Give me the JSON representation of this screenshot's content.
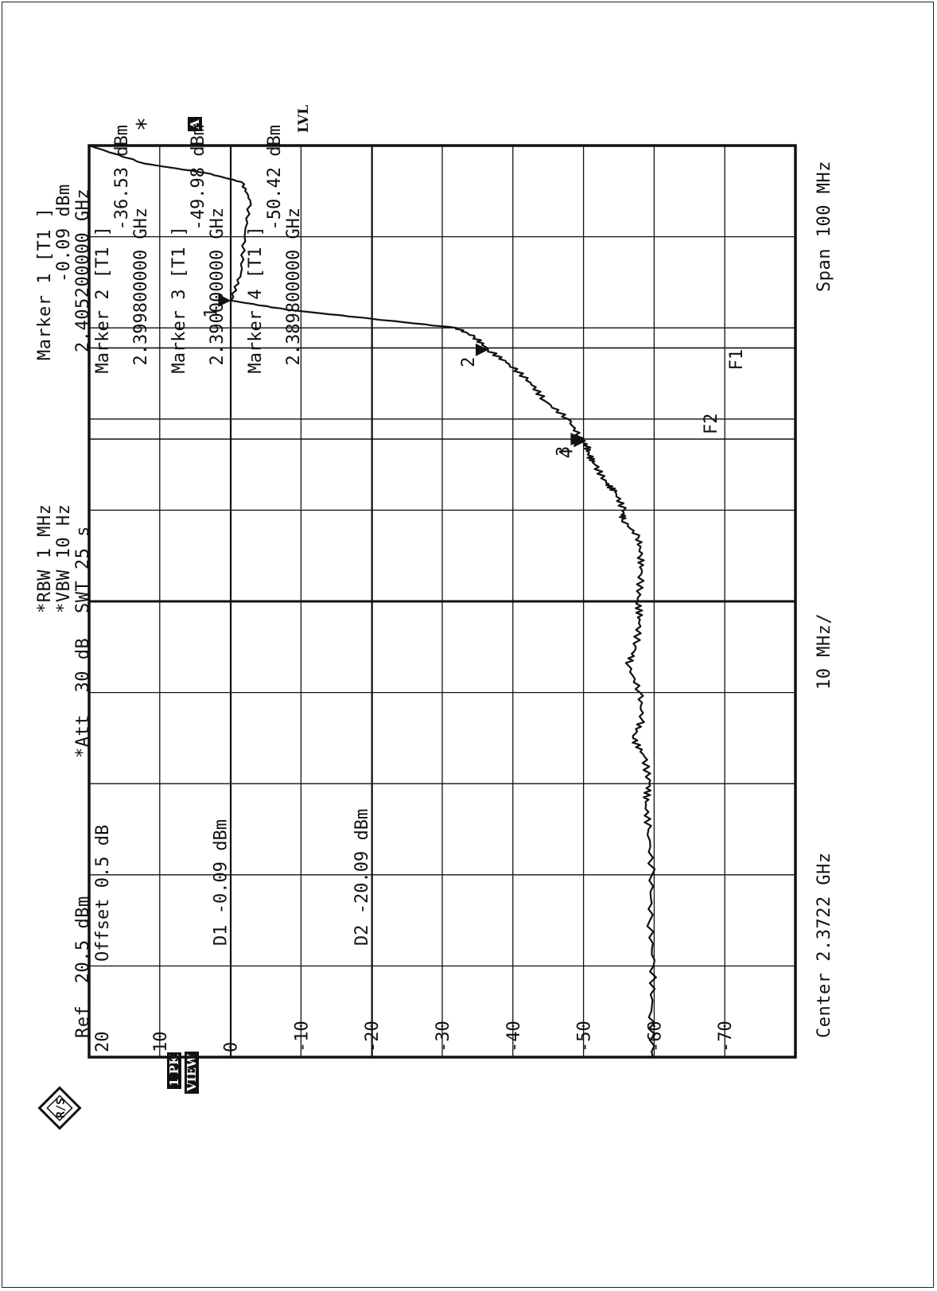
{
  "header": {
    "ref": "Ref  20.5 dBm",
    "att": "*Att  30 dB",
    "rbw": "*RBW 1 MHz",
    "vbw": "*VBW 10 Hz",
    "swt": "SWT 25 s",
    "offset": "Offset  0.5  dB",
    "marker1_title": "Marker 1 [T1 ]",
    "marker1_level": "-0.09 dBm",
    "marker1_freq": "2.405200000 GHz"
  },
  "markers_table": [
    {
      "title": "Marker 2 [T1 ]",
      "level": "-36.53 dBm",
      "freq": "2.399800000 GHz"
    },
    {
      "title": "Marker 3 [T1 ]",
      "level": "-49.98 dBm",
      "freq": "2.390000000 GHz"
    },
    {
      "title": "Marker 4 [T1 ]",
      "level": "-50.42 dBm",
      "freq": "2.389800000 GHz"
    }
  ],
  "side_labels": {
    "trace": "1 PK",
    "view": "VIEW",
    "a": "A",
    "lvl": "LVL",
    "star": "*"
  },
  "footer": {
    "center": "Center 2.3722 GHz",
    "div": "10 MHz/",
    "span": "Span 100 MHz"
  },
  "display_lines": {
    "d1": "D1  -0.09 dBm",
    "d2": "D2  -20.09 dBm",
    "f1": "F1",
    "f2": "F2"
  },
  "chart_data": {
    "type": "line",
    "ylim": [
      -80,
      20
    ],
    "xlim": [
      2.3222,
      2.4222
    ],
    "y_ticks": [
      20,
      10,
      0,
      -10,
      -20,
      -30,
      -40,
      -50,
      -60,
      -70
    ],
    "grid": true,
    "reference_lines": [
      {
        "name": "D1",
        "value": -0.09,
        "orientation": "horizontal"
      },
      {
        "name": "D2",
        "value": -20.09,
        "orientation": "horizontal"
      },
      {
        "name": "F1",
        "value": 2.4,
        "orientation": "vertical"
      },
      {
        "name": "F2",
        "value": 2.39,
        "orientation": "vertical"
      }
    ],
    "markers": [
      {
        "label": "1",
        "x": 2.4052,
        "y": -0.09
      },
      {
        "label": "2",
        "x": 2.3998,
        "y": -36.53
      },
      {
        "label": "3",
        "x": 2.39,
        "y": -49.98
      },
      {
        "label": "4",
        "x": 2.3898,
        "y": -50.42
      }
    ],
    "series": [
      {
        "x": [
          2.3222,
          2.3272,
          2.3322,
          2.3372,
          2.3422,
          2.3472,
          2.3502,
          2.3522,
          2.3552,
          2.3572,
          2.3592,
          2.3622,
          2.3652,
          2.3672,
          2.3702,
          2.3722,
          2.3752,
          2.3772,
          2.3792,
          2.3812,
          2.3822,
          2.3842,
          2.3852,
          2.3872,
          2.3882,
          2.3892,
          2.3902,
          2.3922,
          2.3942,
          2.3962,
          2.3982,
          2.3998,
          2.4012,
          2.4022,
          2.4032,
          2.4042,
          2.4052,
          2.4082,
          2.4122,
          2.4162,
          2.4182,
          2.4192,
          2.4202,
          2.4222
        ],
        "y": [
          -59.8,
          -59.6,
          -59.9,
          -59.4,
          -59.7,
          -59.2,
          -58.8,
          -59.3,
          -58.6,
          -57.0,
          -58.3,
          -58.0,
          -56.3,
          -57.4,
          -58.0,
          -57.7,
          -58.2,
          -58.1,
          -57.8,
          -55.5,
          -55.7,
          -54.5,
          -53.2,
          -51.6,
          -50.8,
          -50.5,
          -49.5,
          -47.8,
          -44.5,
          -42.5,
          -39.5,
          -36.5,
          -34.6,
          -32.0,
          -20.0,
          -8.0,
          -0.1,
          -1.5,
          -2.0,
          -2.8,
          -1.6,
          3.5,
          12.0,
          20.0
        ]
      }
    ]
  }
}
